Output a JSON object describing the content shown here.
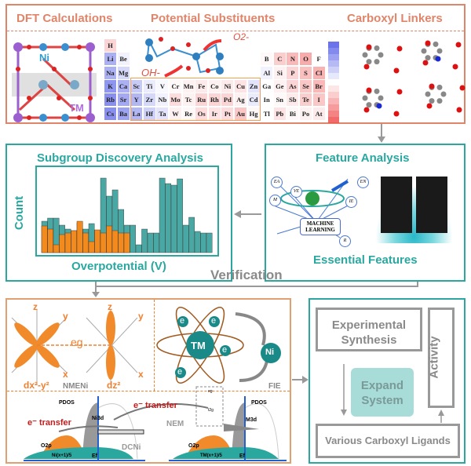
{
  "top": {
    "dft_title": "DFT Calculations",
    "substituents_title": "Potential Substituents",
    "linkers_title": "Carboxyl Linkers",
    "ni_label": "Ni",
    "tm_label": "TM",
    "oh_label": "OH-",
    "o2_label": "O2-",
    "elements": [
      {
        "s": "H",
        "r": 0,
        "c": 0,
        "v": 0.3
      },
      {
        "s": "Li",
        "r": 1,
        "c": 0,
        "v": -0.6
      },
      {
        "s": "Be",
        "r": 1,
        "c": 1,
        "v": -0.1
      },
      {
        "s": "B",
        "r": 1,
        "c": 12,
        "v": 0.05
      },
      {
        "s": "C",
        "r": 1,
        "c": 13,
        "v": 0.35
      },
      {
        "s": "N",
        "r": 1,
        "c": 14,
        "v": 0.5
      },
      {
        "s": "O",
        "r": 1,
        "c": 15,
        "v": 0.6
      },
      {
        "s": "F",
        "r": 1,
        "c": 16,
        "v": 0
      },
      {
        "s": "Na",
        "r": 2,
        "c": 0,
        "v": -0.6
      },
      {
        "s": "Mg",
        "r": 2,
        "c": 1,
        "v": -0.3
      },
      {
        "s": "Al",
        "r": 2,
        "c": 12,
        "v": -0.1
      },
      {
        "s": "Si",
        "r": 2,
        "c": 13,
        "v": 0.1
      },
      {
        "s": "P",
        "r": 2,
        "c": 14,
        "v": 0.3
      },
      {
        "s": "S",
        "r": 2,
        "c": 15,
        "v": 0.45
      },
      {
        "s": "Cl",
        "r": 2,
        "c": 16,
        "v": 0.55
      },
      {
        "s": "K",
        "r": 3,
        "c": 0,
        "v": -0.8
      },
      {
        "s": "Ca",
        "r": 3,
        "c": 1,
        "v": -0.6
      },
      {
        "s": "Sc",
        "r": 3,
        "c": 2,
        "v": -0.4
      },
      {
        "s": "Ti",
        "r": 3,
        "c": 3,
        "v": -0.15
      },
      {
        "s": "V",
        "r": 3,
        "c": 4,
        "v": -0.05
      },
      {
        "s": "Cr",
        "r": 3,
        "c": 5,
        "v": 0.05
      },
      {
        "s": "Mn",
        "r": 3,
        "c": 6,
        "v": 0.1
      },
      {
        "s": "Fe",
        "r": 3,
        "c": 7,
        "v": 0.15
      },
      {
        "s": "Co",
        "r": 3,
        "c": 8,
        "v": 0.1
      },
      {
        "s": "Ni",
        "r": 3,
        "c": 9,
        "v": 0.15
      },
      {
        "s": "Cu",
        "r": 3,
        "c": 10,
        "v": 0.2
      },
      {
        "s": "Zn",
        "r": 3,
        "c": 11,
        "v": -0.2
      },
      {
        "s": "Ga",
        "r": 3,
        "c": 12,
        "v": 0
      },
      {
        "s": "Ge",
        "r": 3,
        "c": 13,
        "v": 0.1
      },
      {
        "s": "As",
        "r": 3,
        "c": 14,
        "v": 0.3
      },
      {
        "s": "Se",
        "r": 3,
        "c": 15,
        "v": 0.4
      },
      {
        "s": "Br",
        "r": 3,
        "c": 16,
        "v": 0.5
      },
      {
        "s": "Rb",
        "r": 4,
        "c": 0,
        "v": -0.85
      },
      {
        "s": "Sr",
        "r": 4,
        "c": 1,
        "v": -0.65
      },
      {
        "s": "Y",
        "r": 4,
        "c": 2,
        "v": -0.55
      },
      {
        "s": "Zr",
        "r": 4,
        "c": 3,
        "v": -0.3
      },
      {
        "s": "Nb",
        "r": 4,
        "c": 4,
        "v": -0.1
      },
      {
        "s": "Mo",
        "r": 4,
        "c": 5,
        "v": 0.25
      },
      {
        "s": "Tc",
        "r": 4,
        "c": 6,
        "v": 0.1
      },
      {
        "s": "Ru",
        "r": 4,
        "c": 7,
        "v": 0.3
      },
      {
        "s": "Rh",
        "r": 4,
        "c": 8,
        "v": 0.3
      },
      {
        "s": "Pd",
        "r": 4,
        "c": 9,
        "v": 0.3
      },
      {
        "s": "Ag",
        "r": 4,
        "c": 10,
        "v": 0.1
      },
      {
        "s": "Cd",
        "r": 4,
        "c": 11,
        "v": -0.15
      },
      {
        "s": "In",
        "r": 4,
        "c": 12,
        "v": 0
      },
      {
        "s": "Sn",
        "r": 4,
        "c": 13,
        "v": 0.05
      },
      {
        "s": "Sb",
        "r": 4,
        "c": 14,
        "v": 0.15
      },
      {
        "s": "Te",
        "r": 4,
        "c": 15,
        "v": 0.35
      },
      {
        "s": "I",
        "r": 4,
        "c": 16,
        "v": 0.4
      },
      {
        "s": "Cs",
        "r": 5,
        "c": 0,
        "v": -0.85
      },
      {
        "s": "Ba",
        "r": 5,
        "c": 1,
        "v": -0.7
      },
      {
        "s": "La",
        "r": 5,
        "c": 2,
        "v": -0.55
      },
      {
        "s": "Hf",
        "r": 5,
        "c": 3,
        "v": -0.35
      },
      {
        "s": "Ta",
        "r": 5,
        "c": 4,
        "v": -0.2
      },
      {
        "s": "W",
        "r": 5,
        "c": 5,
        "v": 0.1
      },
      {
        "s": "Re",
        "r": 5,
        "c": 6,
        "v": 0.05
      },
      {
        "s": "Os",
        "r": 5,
        "c": 7,
        "v": 0.25
      },
      {
        "s": "Ir",
        "r": 5,
        "c": 8,
        "v": 0.2
      },
      {
        "s": "Pt",
        "r": 5,
        "c": 9,
        "v": 0.25
      },
      {
        "s": "Au",
        "r": 5,
        "c": 10,
        "v": 0.4
      },
      {
        "s": "Hg",
        "r": 5,
        "c": 11,
        "v": 0.05
      },
      {
        "s": "Tl",
        "r": 5,
        "c": 12,
        "v": 0
      },
      {
        "s": "Pb",
        "r": 5,
        "c": 13,
        "v": 0.2
      },
      {
        "s": "Bi",
        "r": 5,
        "c": 14,
        "v": 0.05
      },
      {
        "s": "Po",
        "r": 5,
        "c": 15,
        "v": 0.1
      },
      {
        "s": "At",
        "r": 5,
        "c": 16,
        "v": 0.15
      }
    ]
  },
  "subgroup": {
    "title": "Subgroup Discovery Analysis",
    "ylabel": "Count",
    "xlabel": "Overpotential (V)"
  },
  "feature": {
    "title": "Feature Analysis",
    "ml_label": "MACHINE LEARNING",
    "nodes": [
      "EA",
      "M",
      "VE",
      "IE",
      "EN",
      "R"
    ],
    "subtitle": "Essential Features"
  },
  "verification_label": "Verification",
  "mechanism": {
    "z": "z",
    "y": "y",
    "x": "x",
    "eg": "eg",
    "dx2y2": "dx²-y²",
    "dz2": "dz²",
    "nmeni": "NMENi",
    "tm": "TM",
    "ni": "Ni",
    "e": "e",
    "fie": "FIE",
    "pdos": "PDOS",
    "etransfer": "e⁻ transfer",
    "ni3d": "Ni3d",
    "o2p": "O2p",
    "ni_band": "Ni(x+1)/5",
    "ef": "Ef",
    "dcni": "DCNi",
    "nem": "NEM",
    "eg_small": "eg",
    "t2g": "t2g",
    "m3d": "M3d",
    "tm_band": "TM(x+1)/5"
  },
  "workflow": {
    "exp": "Experimental Synthesis",
    "activity": "Activity",
    "expand": "Expand System",
    "ligands": "Various Carboxyl Ligands"
  },
  "colors": {
    "orange": "#e0856a",
    "teal": "#2aa8a0",
    "gray": "#8a8a8a",
    "bar_orange": "#f28a1e",
    "bar_teal": "#4aa8a4"
  }
}
